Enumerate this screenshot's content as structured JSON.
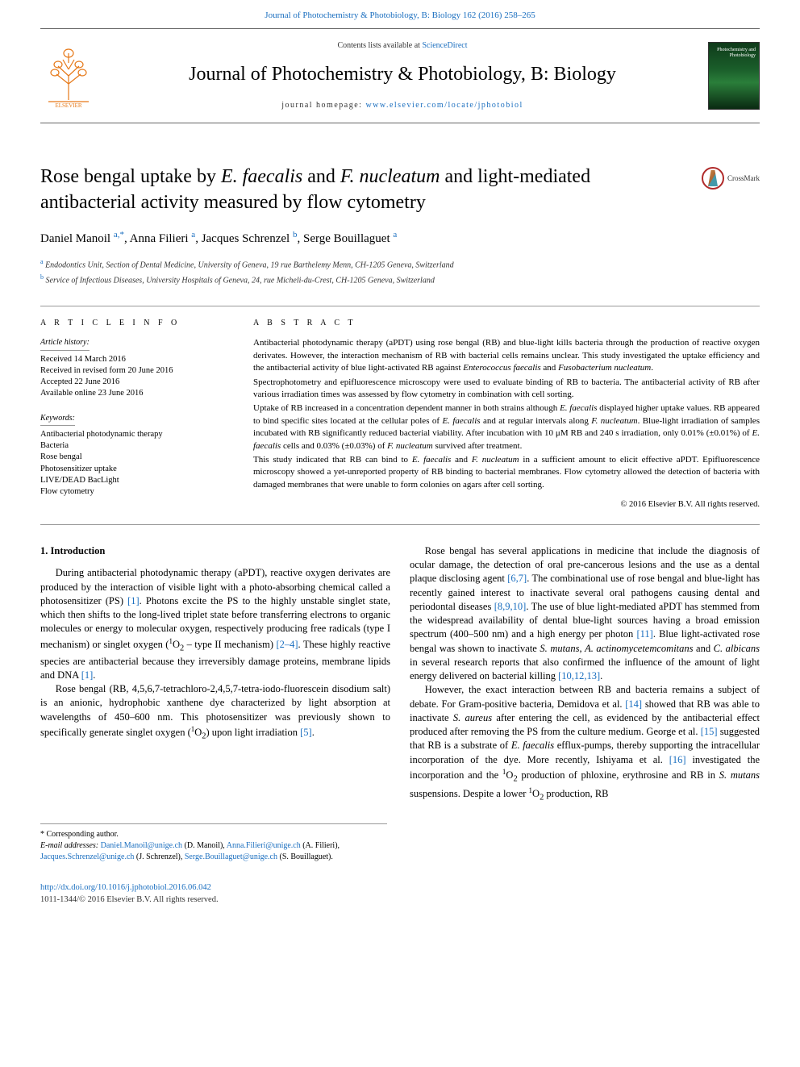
{
  "toplink": "Journal of Photochemistry & Photobiology, B: Biology 162 (2016) 258–265",
  "contents_prefix": "Contents lists available at ",
  "contents_link": "ScienceDirect",
  "journal_name": "Journal of Photochemistry & Photobiology, B: Biology",
  "homepage_prefix": "journal homepage: ",
  "homepage_link": "www.elsevier.com/locate/jphotobiol",
  "cover_text": "Photochemistry\nand Photobiology",
  "crossmark": "CrossMark",
  "title_pre": "Rose bengal uptake by ",
  "title_em1": "E. faecalis",
  "title_mid": " and ",
  "title_em2": "F. nucleatum",
  "title_post": " and light-mediated antibacterial activity measured by flow cytometry",
  "authors": [
    {
      "name": "Daniel Manoil",
      "sup": "a,*"
    },
    {
      "name": "Anna Filieri",
      "sup": "a"
    },
    {
      "name": "Jacques Schrenzel",
      "sup": "b"
    },
    {
      "name": "Serge Bouillaguet",
      "sup": "a"
    }
  ],
  "affiliations": [
    {
      "sup": "a",
      "text": "Endodontics Unit, Section of Dental Medicine, University of Geneva, 19 rue Barthelemy Menn, CH-1205 Geneva, Switzerland"
    },
    {
      "sup": "b",
      "text": "Service of Infectious Diseases, University Hospitals of Geneva, 24, rue Micheli-du-Crest, CH-1205 Geneva, Switzerland"
    }
  ],
  "article_info_heading": "A R T I C L E   I N F O",
  "history_heading": "Article history:",
  "history": [
    "Received 14 March 2016",
    "Received in revised form 20 June 2016",
    "Accepted 22 June 2016",
    "Available online 23 June 2016"
  ],
  "keywords_heading": "Keywords:",
  "keywords": [
    "Antibacterial photodynamic therapy",
    "Bacteria",
    "Rose bengal",
    "Photosensitizer uptake",
    "LIVE/DEAD BacLight",
    "Flow cytometry"
  ],
  "abstract_heading": "A B S T R A C T",
  "abstract_paras": [
    "Antibacterial photodynamic therapy (aPDT) using rose bengal (RB) and blue-light kills bacteria through the production of reactive oxygen derivates. However, the interaction mechanism of RB with bacterial cells remains unclear. This study investigated the uptake efficiency and the antibacterial activity of blue light-activated RB against <em>Enterococcus faecalis</em> and <em>Fusobacterium nucleatum</em>.",
    "Spectrophotometry and epifluorescence microscopy were used to evaluate binding of RB to bacteria. The antibacterial activity of RB after various irradiation times was assessed by flow cytometry in combination with cell sorting.",
    "Uptake of RB increased in a concentration dependent manner in both strains although <em>E. faecalis</em> displayed higher uptake values. RB appeared to bind specific sites located at the cellular poles of <em>E. faecalis</em> and at regular intervals along <em>F. nucleatum</em>. Blue-light irradiation of samples incubated with RB significantly reduced bacterial viability. After incubation with 10 μM RB and 240 s irradiation, only 0.01% (±0.01%) of <em>E. faecalis</em> cells and 0.03% (±0.03%) of <em>F. nucleatum</em> survived after treatment.",
    "This study indicated that RB can bind to <em>E. faecalis</em> and <em>F. nucleatum</em> in a sufficient amount to elicit effective aPDT. Epifluorescence microscopy showed a yet-unreported property of RB binding to bacterial membranes. Flow cytometry allowed the detection of bacteria with damaged membranes that were unable to form colonies on agars after cell sorting."
  ],
  "copyright": "© 2016 Elsevier B.V. All rights reserved.",
  "intro_heading": "1. Introduction",
  "intro_left": [
    "During antibacterial photodynamic therapy (aPDT), reactive oxygen derivates are produced by the interaction of visible light with a photo-absorbing chemical called a photosensitizer (PS) <span class='ref-link'>[1]</span>. Photons excite the PS to the highly unstable singlet state, which then shifts to the long-lived triplet state before transferring electrons to organic molecules or energy to molecular oxygen, respectively producing free radicals (type I mechanism) or singlet oxygen (<sup>1</sup>O<sub>2</sub> – type II mechanism) <span class='ref-link'>[2–4]</span>. These highly reactive species are antibacterial because they irreversibly damage proteins, membrane lipids and DNA <span class='ref-link'>[1]</span>.",
    "Rose bengal (RB, 4,5,6,7-tetrachloro-2,4,5,7-tetra-iodo-fluorescein disodium salt) is an anionic, hydrophobic xanthene dye characterized by light absorption at wavelengths of 450–600 nm. This photosensitizer was previously shown to specifically generate singlet oxygen (<sup>1</sup>O<sub>2</sub>) upon light irradiation <span class='ref-link'>[5]</span>."
  ],
  "intro_right": [
    "Rose bengal has several applications in medicine that include the diagnosis of ocular damage, the detection of oral pre-cancerous lesions and the use as a dental plaque disclosing agent <span class='ref-link'>[6,7]</span>. The combinational use of rose bengal and blue-light has recently gained interest to inactivate several oral pathogens causing dental and periodontal diseases <span class='ref-link'>[8,9,10]</span>. The use of blue light-mediated aPDT has stemmed from the widespread availability of dental blue-light sources having a broad emission spectrum (400–500 nm) and a high energy per photon <span class='ref-link'>[11]</span>. Blue light-activated rose bengal was shown to inactivate <em>S. mutans</em>, <em>A. actinomycetemcomitans</em> and <em>C. albicans</em> in several research reports that also confirmed the influence of the amount of light energy delivered on bacterial killing <span class='ref-link'>[10,12,13]</span>.",
    "However, the exact interaction between RB and bacteria remains a subject of debate. For Gram-positive bacteria, Demidova et al. <span class='ref-link'>[14]</span> showed that RB was able to inactivate <em>S. aureus</em> after entering the cell, as evidenced by the antibacterial effect produced after removing the PS from the culture medium. George et al. <span class='ref-link'>[15]</span> suggested that RB is a substrate of <em>E. faecalis</em> efflux-pumps, thereby supporting the intracellular incorporation of the dye. More recently, Ishiyama et al. <span class='ref-link'>[16]</span> investigated the incorporation and the <sup>1</sup>O<sub>2</sub> production of phloxine, erythrosine and RB in <em>S. mutans</em> suspensions. Despite a lower <sup>1</sup>O<sub>2</sub> production, RB"
  ],
  "corresponding": "* Corresponding author.",
  "emails_label": "E-mail addresses:",
  "emails": [
    {
      "addr": "Daniel.Manoil@unige.ch",
      "who": "(D. Manoil)"
    },
    {
      "addr": "Anna.Filieri@unige.ch",
      "who": "(A. Filieri)"
    },
    {
      "addr": "Jacques.Schrenzel@unige.ch",
      "who": "(J. Schrenzel)"
    },
    {
      "addr": "Serge.Bouillaguet@unige.ch",
      "who": "(S. Bouillaguet)"
    }
  ],
  "doi": "http://dx.doi.org/10.1016/j.jphotobiol.2016.06.042",
  "footer_copy": "1011-1344/© 2016 Elsevier B.V. All rights reserved.",
  "colors": {
    "link": "#1a6ebf",
    "elsevier": "#e67817",
    "rule": "#999999"
  }
}
